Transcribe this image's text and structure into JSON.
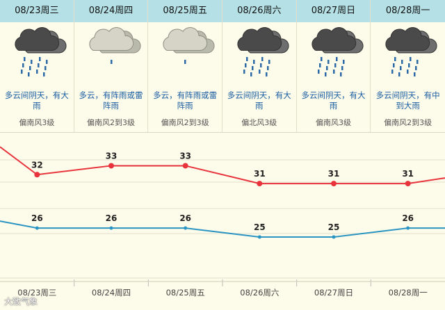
{
  "days": [
    {
      "date": "08/23周三",
      "condition": "多云间阴天，有大雨",
      "wind": "偏南风3级",
      "icon": "dark-rain-cloud-icon"
    },
    {
      "date": "08/24周四",
      "condition": "多云，有阵雨或雷阵雨",
      "wind": "偏南风2到3级",
      "icon": "light-shower-cloud-icon"
    },
    {
      "date": "08/25周五",
      "condition": "多云，有阵雨或雷阵雨",
      "wind": "偏南风2到3级",
      "icon": "light-shower-cloud-icon"
    },
    {
      "date": "08/26周六",
      "condition": "多云间阴天，有大雨",
      "wind": "偏北风3级",
      "icon": "dark-rain-cloud-icon"
    },
    {
      "date": "08/27周日",
      "condition": "多云间阴天，有大雨",
      "wind": "偏南风3级",
      "icon": "dark-rain-cloud-icon"
    },
    {
      "date": "08/28周一",
      "condition": "多云间阴天，有中到大雨",
      "wind": "偏南风2到3级",
      "icon": "dark-rain-cloud-icon"
    }
  ],
  "chart_data": {
    "type": "line",
    "categories": [
      "08/23周三",
      "08/24周四",
      "08/25周五",
      "08/26周六",
      "08/27周日",
      "08/28周一"
    ],
    "series": [
      {
        "values": [
          32,
          33,
          33,
          31,
          31,
          31
        ],
        "color": "#e8323c"
      },
      {
        "values": [
          26,
          26,
          26,
          25,
          25,
          26
        ],
        "color": "#2a95c2"
      }
    ],
    "ylim": [
      20,
      36
    ]
  },
  "watermark": "大致气象"
}
